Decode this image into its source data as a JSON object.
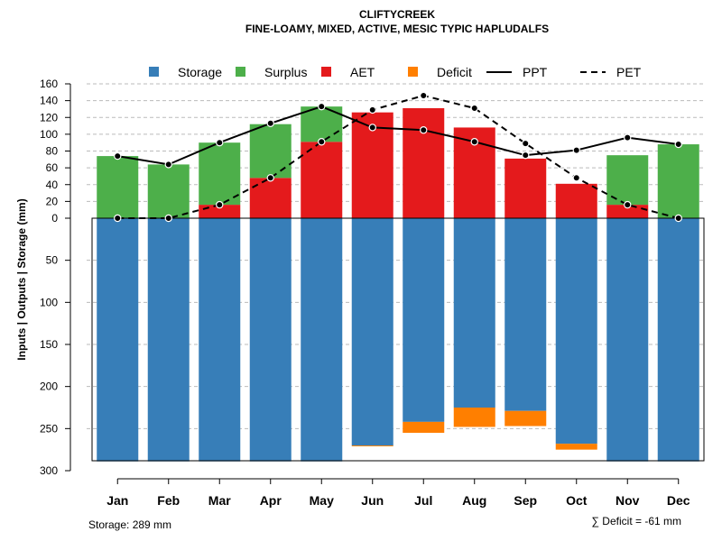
{
  "chart_data": {
    "type": "bar",
    "title": "CLIFTYCREEK",
    "subtitle": "FINE-LOAMY, MIXED, ACTIVE, MESIC TYPIC HAPLUDALFS",
    "ylabel": "Inputs | Outputs | Storage     (mm)",
    "categories": [
      "Jan",
      "Feb",
      "Mar",
      "Apr",
      "May",
      "Jun",
      "Jul",
      "Aug",
      "Sep",
      "Oct",
      "Nov",
      "Dec"
    ],
    "upper_ticks": [
      "0",
      "20",
      "40",
      "60",
      "80",
      "100",
      "120",
      "140",
      "160"
    ],
    "lower_ticks": [
      "0",
      "50",
      "100",
      "150",
      "200",
      "250",
      "300"
    ],
    "upper_ylim": [
      0,
      160
    ],
    "lower_ylim": [
      0,
      300
    ],
    "series": [
      {
        "name": "AET",
        "kind": "bar-up",
        "color": "#e41a1c",
        "values": [
          0,
          0,
          16,
          48,
          91,
          126,
          131,
          108,
          71,
          41,
          16,
          0
        ]
      },
      {
        "name": "Surplus",
        "kind": "bar-up",
        "color": "#4daf4a",
        "values": [
          74,
          64,
          74,
          64,
          42,
          0,
          0,
          0,
          0,
          0,
          59,
          88
        ]
      },
      {
        "name": "Storage",
        "kind": "bar-down",
        "color": "#377eb8",
        "values": [
          289,
          289,
          289,
          289,
          289,
          270,
          242,
          225,
          229,
          268,
          289,
          289
        ]
      },
      {
        "name": "Deficit",
        "kind": "bar-down",
        "color": "#ff7f00",
        "values": [
          0,
          0,
          0,
          0,
          0,
          1,
          13,
          23,
          18,
          7,
          0,
          0
        ]
      },
      {
        "name": "PPT",
        "kind": "line",
        "style": "solid",
        "color": "#000000",
        "values": [
          74,
          64,
          90,
          113,
          133,
          108,
          105,
          91,
          75,
          81,
          96,
          88
        ]
      },
      {
        "name": "PET",
        "kind": "line",
        "style": "dashed",
        "color": "#000000",
        "values": [
          0,
          0,
          16,
          48,
          91,
          129,
          146,
          131,
          89,
          48,
          16,
          0
        ]
      }
    ],
    "legend": [
      "Storage",
      "Surplus",
      "AET",
      "Deficit",
      "PPT",
      "PET"
    ],
    "legend_position": "top",
    "grid": "horizontal dashed",
    "storage_note": "Storage: 289 mm",
    "deficit_note": "∑ Deficit = -61 mm"
  }
}
